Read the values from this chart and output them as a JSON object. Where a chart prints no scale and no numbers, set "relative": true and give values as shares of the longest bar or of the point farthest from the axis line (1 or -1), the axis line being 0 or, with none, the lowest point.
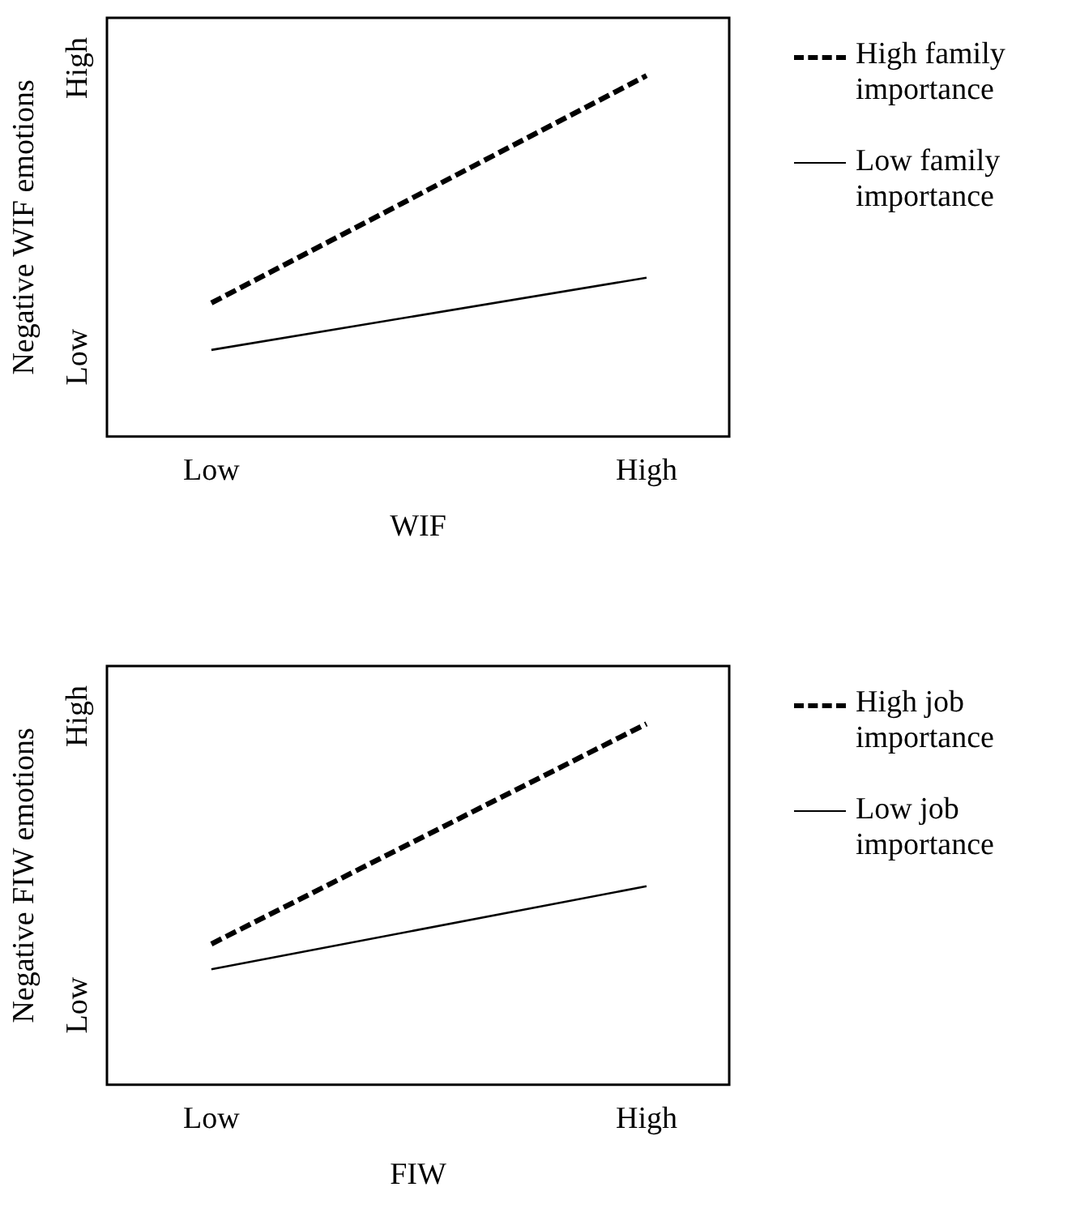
{
  "chart_data": [
    {
      "type": "line",
      "xlabel": "WIF",
      "ylabel": "Negative WIF emotions",
      "categories": [
        "Low",
        "High"
      ],
      "relative": true,
      "annotations": [
        "Low",
        "High"
      ],
      "legend": "right",
      "grid": false,
      "marker": "none",
      "series": [
        {
          "name": "High family importance",
          "color": "#000000",
          "line_style": "dashed",
          "values": [
            0.37,
            1
          ]
        },
        {
          "name": "Low family importance",
          "color": "#000000",
          "line_style": "solid",
          "values": [
            0.24,
            0.44
          ]
        }
      ]
    },
    {
      "type": "line",
      "xlabel": "FIW",
      "ylabel": "Negative FIW emotions",
      "categories": [
        "Low",
        "High"
      ],
      "relative": true,
      "annotations": [
        "Low",
        "High"
      ],
      "legend": "right",
      "grid": false,
      "marker": "none",
      "series": [
        {
          "name": "High job importance",
          "color": "#000000",
          "line_style": "dashed",
          "values": [
            0.39,
            1
          ]
        },
        {
          "name": "Low job importance",
          "color": "#000000",
          "line_style": "solid",
          "values": [
            0.32,
            0.55
          ]
        }
      ]
    }
  ]
}
